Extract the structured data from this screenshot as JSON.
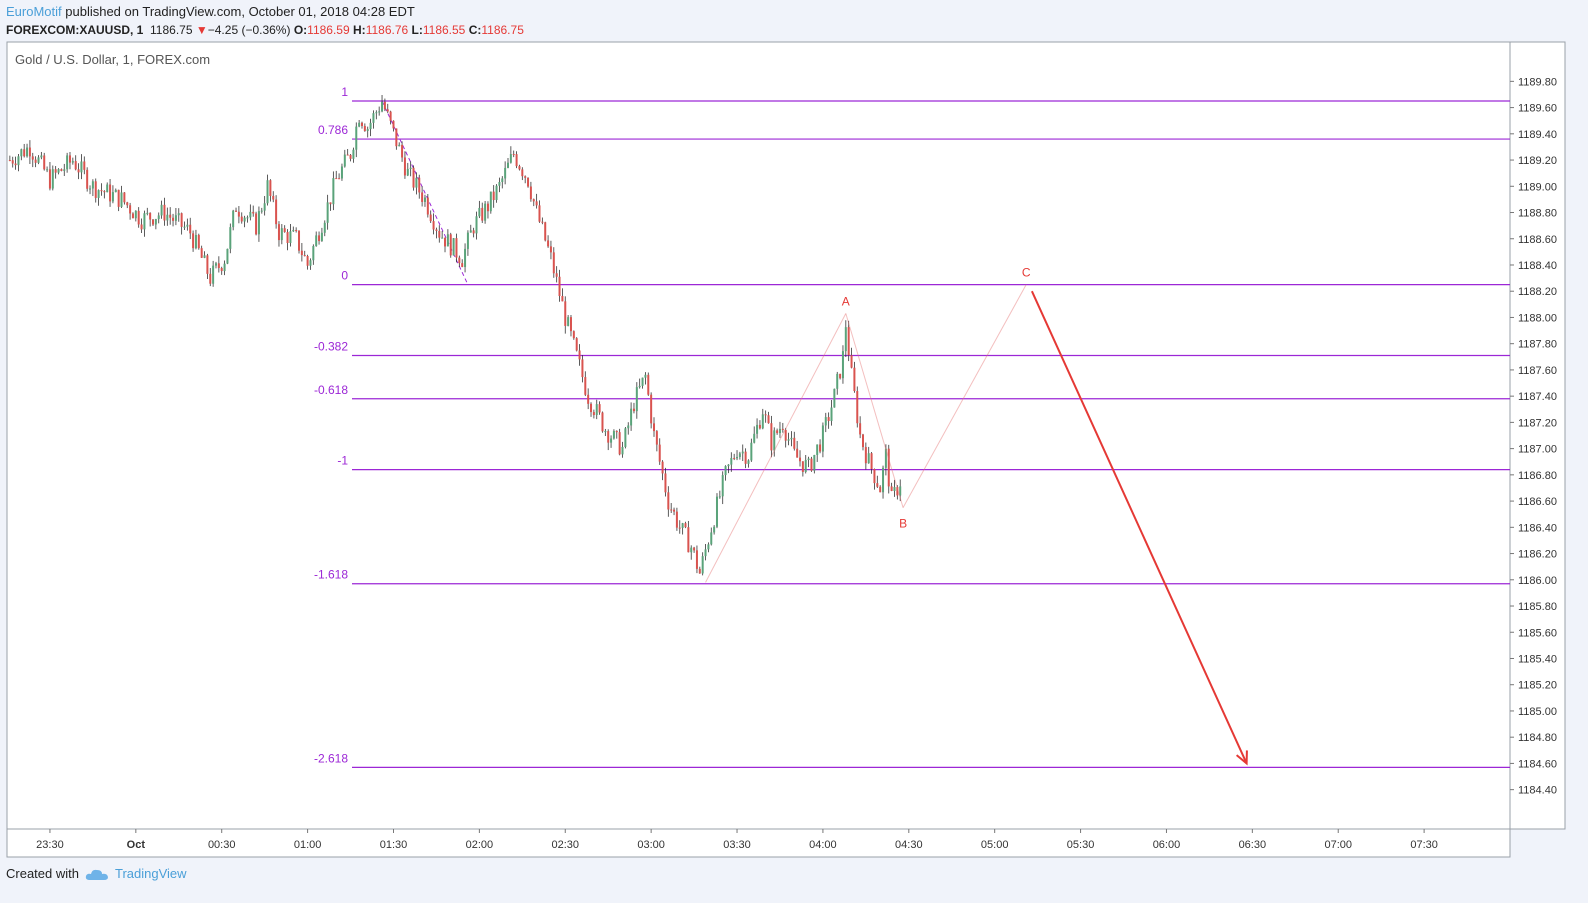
{
  "header": {
    "author": "EuroMotif",
    "published_text": " published on TradingView.com, October 01, 2018 04:28 EDT",
    "symbol": "FOREXCOM:XAUUSD, 1",
    "last": "1186.75",
    "change_arrow": "▼",
    "change": "−4.25 (−0.36%)",
    "o_label": "O:",
    "o_value": "1186.59",
    "h_label": "H:",
    "h_value": "1186.76",
    "l_label": "L:",
    "l_value": "1186.55",
    "c_label": "C:",
    "c_value": "1186.75"
  },
  "footer": {
    "created_with": "Created with",
    "brand": "TradingView"
  },
  "colors": {
    "up": "#5aa37a",
    "down": "#d9534f",
    "fib": "#9c27d6",
    "wave": "#e57373",
    "arrow": "#e53935",
    "bg": "#f0f3fa",
    "plot_bg": "#ffffff"
  },
  "chart_data": {
    "type": "candlestick",
    "title": "Gold / U.S. Dollar, 1, FOREX.com",
    "ylim": [
      1184.1,
      1190.1
    ],
    "y_ticks": [
      1189.8,
      1189.6,
      1189.4,
      1189.2,
      1189.0,
      1188.8,
      1188.6,
      1188.4,
      1188.2,
      1188.0,
      1187.8,
      1187.6,
      1187.4,
      1187.2,
      1187.0,
      1186.8,
      1186.6,
      1186.4,
      1186.2,
      1186.0,
      1185.8,
      1185.6,
      1185.4,
      1185.2,
      1185.0,
      1184.8,
      1184.6,
      1184.4
    ],
    "y_tick_labels": [
      "1189.80",
      "1189.60",
      "1189.40",
      "1189.20",
      "1189.00",
      "1188.80",
      "1188.60",
      "1188.40",
      "1188.20",
      "1188.00",
      "1187.80",
      "1187.60",
      "1187.40",
      "1187.20",
      "1187.00",
      "1186.80",
      "1186.60",
      "1186.40",
      "1186.20",
      "1186.00",
      "1185.80",
      "1185.60",
      "1185.40",
      "1185.20",
      "1185.00",
      "1184.80",
      "1184.60",
      "1184.40"
    ],
    "x_minute_range": [
      -45,
      480
    ],
    "x_ticks": [
      {
        "label": "23:30",
        "m": -30
      },
      {
        "label": "Oct",
        "m": 0
      },
      {
        "label": "00:30",
        "m": 30
      },
      {
        "label": "01:00",
        "m": 60
      },
      {
        "label": "01:30",
        "m": 90
      },
      {
        "label": "02:00",
        "m": 120
      },
      {
        "label": "02:30",
        "m": 150
      },
      {
        "label": "03:00",
        "m": 180
      },
      {
        "label": "03:30",
        "m": 210
      },
      {
        "label": "04:00",
        "m": 240
      },
      {
        "label": "04:30",
        "m": 270
      },
      {
        "label": "05:00",
        "m": 300
      },
      {
        "label": "05:30",
        "m": 330
      },
      {
        "label": "06:00",
        "m": 360
      },
      {
        "label": "06:30",
        "m": 390
      },
      {
        "label": "07:00",
        "m": 420
      },
      {
        "label": "07:30",
        "m": 450
      }
    ],
    "candle_path": [
      [
        -44,
        1189.2
      ],
      [
        -37,
        1189.3
      ],
      [
        -30,
        1189.05
      ],
      [
        -22,
        1189.2
      ],
      [
        -15,
        1189.0
      ],
      [
        -5,
        1188.9
      ],
      [
        2,
        1188.75
      ],
      [
        10,
        1188.8
      ],
      [
        19,
        1188.65
      ],
      [
        26,
        1188.3
      ],
      [
        31,
        1188.45
      ],
      [
        35,
        1188.85
      ],
      [
        42,
        1188.7
      ],
      [
        46,
        1189.0
      ],
      [
        50,
        1188.65
      ],
      [
        56,
        1188.6
      ],
      [
        60,
        1188.4
      ],
      [
        63,
        1188.6
      ],
      [
        67,
        1188.85
      ],
      [
        70,
        1189.05
      ],
      [
        75,
        1189.25
      ],
      [
        78,
        1189.55
      ],
      [
        81,
        1189.45
      ],
      [
        86,
        1189.65
      ],
      [
        90,
        1189.4
      ],
      [
        95,
        1189.1
      ],
      [
        101,
        1188.9
      ],
      [
        106,
        1188.65
      ],
      [
        110,
        1188.55
      ],
      [
        114,
        1188.45
      ],
      [
        118,
        1188.7
      ],
      [
        123,
        1188.85
      ],
      [
        127,
        1189.0
      ],
      [
        132,
        1189.25
      ],
      [
        137,
        1189.05
      ],
      [
        140,
        1188.8
      ],
      [
        145,
        1188.45
      ],
      [
        150,
        1188.0
      ],
      [
        154,
        1187.7
      ],
      [
        158,
        1187.4
      ],
      [
        164,
        1187.15
      ],
      [
        170,
        1187.0
      ],
      [
        174,
        1187.35
      ],
      [
        178,
        1187.55
      ],
      [
        181,
        1187.1
      ],
      [
        186,
        1186.6
      ],
      [
        190,
        1186.4
      ],
      [
        194,
        1186.25
      ],
      [
        197,
        1186.05
      ],
      [
        201,
        1186.4
      ],
      [
        206,
        1186.8
      ],
      [
        210,
        1187.0
      ],
      [
        214,
        1186.95
      ],
      [
        219,
        1187.3
      ],
      [
        222,
        1187.05
      ],
      [
        226,
        1187.2
      ],
      [
        230,
        1186.95
      ],
      [
        235,
        1186.85
      ],
      [
        240,
        1187.1
      ],
      [
        244,
        1187.4
      ],
      [
        247,
        1187.7
      ],
      [
        248,
        1187.95
      ],
      [
        250,
        1187.55
      ],
      [
        253,
        1187.1
      ],
      [
        256,
        1186.9
      ],
      [
        260,
        1186.7
      ],
      [
        262,
        1186.95
      ],
      [
        264,
        1186.6
      ],
      [
        267,
        1186.75
      ]
    ],
    "fib_levels": [
      {
        "label": "1",
        "price": 1189.65
      },
      {
        "label": "0.786",
        "price": 1189.36
      },
      {
        "label": "0",
        "price": 1188.25
      },
      {
        "label": "-0.382",
        "price": 1187.71
      },
      {
        "label": "-0.618",
        "price": 1187.38
      },
      {
        "label": "-1",
        "price": 1186.84
      },
      {
        "label": "-1.618",
        "price": 1185.97
      },
      {
        "label": "-2.618",
        "price": 1184.57
      }
    ],
    "fib_anchor": [
      {
        "m": 86,
        "price": 1189.65
      },
      {
        "m": 116,
        "price": 1188.25
      }
    ],
    "waves": [
      {
        "label": "",
        "m": 199,
        "price": 1185.98
      },
      {
        "label": "A",
        "m": 248,
        "price": 1188.03
      },
      {
        "label": "B",
        "m": 268,
        "price": 1186.55
      },
      {
        "label": "C",
        "m": 311,
        "price": 1188.25
      }
    ],
    "projection": [
      {
        "m": 313,
        "price": 1188.2
      },
      {
        "m": 388,
        "price": 1184.6
      }
    ]
  }
}
